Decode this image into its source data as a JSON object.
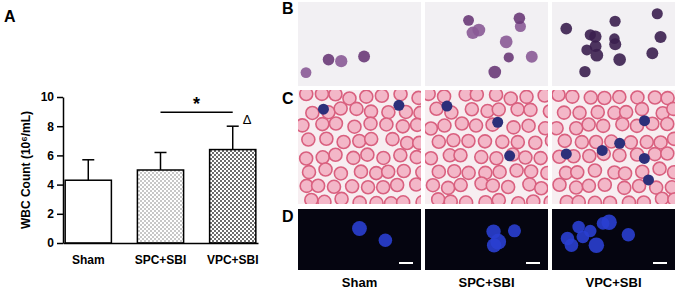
{
  "chart_data": {
    "type": "bar",
    "categories": [
      "Sham",
      "SPC+SBI",
      "VPC+SBI"
    ],
    "values": [
      4.3,
      5.0,
      6.4
    ],
    "errors": [
      1.4,
      1.2,
      1.6
    ],
    "colors": [
      "#ffffff",
      "#b5b5b5",
      "#3a3a3a"
    ],
    "y_label": "WBC Count (10⁶/mL)",
    "ylim": [
      0,
      10
    ],
    "yticks": [
      0,
      2,
      4,
      6,
      8,
      10
    ],
    "annotations": [
      "*",
      "Δ"
    ],
    "grid": false
  },
  "panels": {
    "labels": [
      "A",
      "B",
      "C",
      "D"
    ],
    "image_columns": [
      "Sham",
      "SPC+SBI",
      "VPC+SBI"
    ]
  }
}
